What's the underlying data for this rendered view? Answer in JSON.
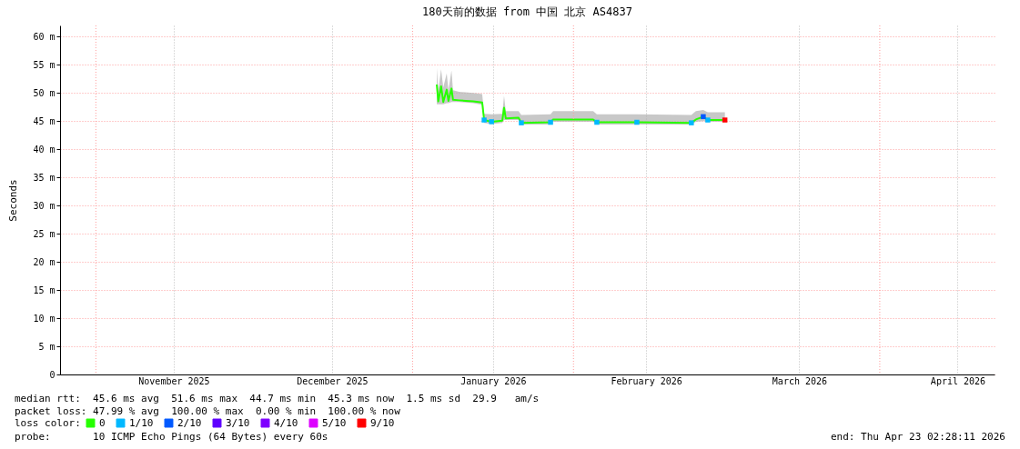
{
  "chart_data": {
    "type": "line",
    "title": "180天前的数据 from 中国 北京 AS4837",
    "ylabel": "Seconds",
    "legend_title": "loss color:",
    "legend": "bottom left",
    "grid": true,
    "xlim": [
      "2025-10-25T02:28",
      "2026-04-23T02:28"
    ],
    "xticks": [
      {
        "value": "2025-11-16",
        "label": "November 2025"
      },
      {
        "value": "2025-12-16T12:00",
        "label": "December 2025"
      },
      {
        "value": "2026-01-16T12:00",
        "label": "January 2026"
      },
      {
        "value": "2026-02-15",
        "label": "February 2026"
      },
      {
        "value": "2026-03-16T12:00",
        "label": "March 2026"
      },
      {
        "value": "2026-04-16",
        "label": "April 2026"
      }
    ],
    "ylim": [
      0,
      62
    ],
    "yticks": [
      0,
      {
        "value": 5,
        "label": "5 m"
      },
      {
        "value": 10,
        "label": "10 m"
      },
      {
        "value": 15,
        "label": "15 m"
      },
      {
        "value": 20,
        "label": "20 m"
      },
      {
        "value": 25,
        "label": "25 m"
      },
      {
        "value": 30,
        "label": "30 m"
      },
      {
        "value": 35,
        "label": "35 m"
      },
      {
        "value": 40,
        "label": "40 m"
      },
      {
        "value": 45,
        "label": "45 m"
      },
      {
        "value": 50,
        "label": "50 m"
      },
      {
        "value": 55,
        "label": "55 m"
      },
      {
        "value": 60,
        "label": "60 m"
      }
    ],
    "x": [
      "2026-01-05T16:00",
      "2026-01-05T23:00",
      "2026-01-06T12:00",
      "2026-01-06T22:00",
      "2026-01-07T14:00",
      "2026-01-07T22:00",
      "2026-01-08T12:00",
      "2026-01-08T19:00",
      "2026-01-09T23:00",
      "2026-01-12T16:00",
      "2026-01-14T10:00",
      "2026-01-14T19:00",
      "2026-01-16T05:00",
      "2026-01-18T07:00",
      "2026-01-18T15:00",
      "2026-01-18T23:00",
      "2026-01-21T10:00",
      "2026-01-21T23:00",
      "2026-01-27T14:00",
      "2026-01-28T02:00",
      "2026-02-04T19:00",
      "2026-02-05T12:00",
      "2026-02-13T05:00",
      "2026-02-23T17:00",
      "2026-02-24T14:00",
      "2026-02-26T00:00",
      "2026-02-26T21:00",
      "2026-03-02T04:00"
    ],
    "series": [
      {
        "name": "0",
        "color": "#26ff00",
        "values": [
          51.5,
          48.5,
          51.2,
          48.4,
          50.6,
          48.6,
          50.8,
          48.8,
          48.7,
          48.5,
          48.3,
          45.2,
          44.9,
          45.1,
          47.4,
          45.5,
          45.6,
          44.7,
          44.8,
          45.3,
          45.3,
          44.8,
          44.8,
          44.7,
          45.3,
          45.8,
          45.2,
          45.2
        ],
        "lower": [
          48.0,
          48.0,
          48.0,
          48.0,
          48.2,
          48.2,
          48.4,
          48.4,
          48.4,
          48.2,
          47.9,
          44.7,
          44.5,
          44.7,
          45.2,
          45.2,
          45.2,
          44.4,
          44.4,
          44.9,
          44.9,
          44.4,
          44.4,
          44.4,
          44.9,
          45.0,
          44.9,
          44.9
        ],
        "upper": [
          54.4,
          50.5,
          54.2,
          51.0,
          53.5,
          50.5,
          54.0,
          50.5,
          50.2,
          50.0,
          49.8,
          46.3,
          46.2,
          46.3,
          49.5,
          46.8,
          46.8,
          46.1,
          46.2,
          46.8,
          46.8,
          46.2,
          46.2,
          46.1,
          46.8,
          47.0,
          46.6,
          46.6
        ]
      },
      {
        "name": "1/10",
        "color": "#00b8ff",
        "type": "scatter",
        "values": [
          null,
          null,
          null,
          null,
          null,
          null,
          null,
          null,
          null,
          null,
          null,
          45.2,
          44.9,
          null,
          null,
          null,
          null,
          44.7,
          44.8,
          null,
          null,
          44.8,
          44.8,
          44.7,
          null,
          null,
          45.2,
          null
        ]
      },
      {
        "name": "2/10",
        "color": "#0059ff",
        "type": "scatter",
        "values": [
          null,
          null,
          null,
          null,
          null,
          null,
          null,
          null,
          null,
          null,
          null,
          null,
          null,
          null,
          null,
          null,
          null,
          null,
          null,
          null,
          null,
          null,
          null,
          null,
          null,
          45.8,
          null,
          null
        ]
      },
      {
        "name": "3/10",
        "color": "#5e00ff",
        "type": "scatter",
        "values": [
          null,
          null,
          null,
          null,
          null,
          null,
          null,
          null,
          null,
          null,
          null,
          null,
          null,
          null,
          null,
          null,
          null,
          null,
          null,
          null,
          null,
          null,
          null,
          null,
          null,
          null,
          null,
          null
        ]
      },
      {
        "name": "4/10",
        "color": "#7e00ff",
        "type": "scatter",
        "values": [
          null,
          null,
          null,
          null,
          null,
          null,
          null,
          null,
          null,
          null,
          null,
          null,
          null,
          null,
          null,
          null,
          null,
          null,
          null,
          null,
          null,
          null,
          null,
          null,
          null,
          null,
          null,
          null
        ]
      },
      {
        "name": "5/10",
        "color": "#dd00ff",
        "type": "scatter",
        "values": [
          null,
          null,
          null,
          null,
          null,
          null,
          null,
          null,
          null,
          null,
          null,
          null,
          null,
          null,
          null,
          null,
          null,
          null,
          null,
          null,
          null,
          null,
          null,
          null,
          null,
          null,
          null,
          null
        ]
      },
      {
        "name": "9/10",
        "color": "#ff0000",
        "type": "scatter",
        "values": [
          null,
          null,
          null,
          null,
          null,
          null,
          null,
          null,
          null,
          null,
          null,
          null,
          null,
          null,
          null,
          null,
          null,
          null,
          null,
          null,
          null,
          null,
          null,
          null,
          null,
          null,
          null,
          45.2
        ]
      }
    ],
    "ref_lines": [
      {
        "axis": "x",
        "value": "2025-11-01",
        "color": "#ff9c9c",
        "line_style": "dotted"
      },
      {
        "axis": "x",
        "value": "2026-01-01",
        "color": "#ff9c9c",
        "line_style": "dotted"
      },
      {
        "axis": "x",
        "value": "2026-02-01",
        "color": "#ff9c9c",
        "line_style": "dotted"
      },
      {
        "axis": "x",
        "value": "2026-04-01",
        "color": "#ff9c9c",
        "line_style": "dotted"
      }
    ],
    "annotations": [
      "median rtt:  45.6 ms avg  51.6 ms max  44.7 ms min  45.3 ms now  1.5 ms sd  29.9   am/s",
      "packet loss: 47.99 % avg  100.00 % max  0.00 % min  100.00 % now",
      "probe:       10 ICMP Echo Pings (64 Bytes) every 60s",
      "end: Thu Apr 23 02:28:11 2026"
    ]
  }
}
